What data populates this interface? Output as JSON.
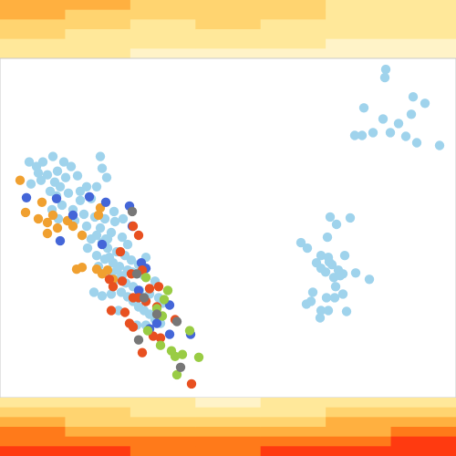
{
  "chart_data": {
    "type": "scatter",
    "title": "",
    "xlabel": "",
    "ylabel": "",
    "grid": false,
    "legend": "none",
    "xlim": [
      0,
      500
    ],
    "ylim": [
      65,
      435
    ],
    "colors": {
      "light_blue": "#9fd3ec",
      "orange": "#f0a030",
      "blue": "#4466d8",
      "red": "#e85020",
      "green": "#99cc44",
      "gray": "#777777"
    },
    "heatmap_palette": [
      "#fff3c8",
      "#ffe89a",
      "#ffd470",
      "#ffb040",
      "#ff7a1a",
      "#ff3a10"
    ],
    "top_heatmap": [
      [
        0.55,
        0.5,
        0.35,
        0.3,
        0.15,
        0.1
      ],
      [
        0.5,
        0.4,
        0.3,
        0.25,
        0.15,
        0.1
      ],
      [
        0.35,
        0.35,
        0.25,
        0.2,
        0.1,
        0.05
      ],
      [
        0.3,
        0.3,
        0.3,
        0.15,
        0.1,
        0.05
      ],
      [
        0.35,
        0.3,
        0.25,
        0.15,
        0.1,
        0.05
      ],
      [
        0.2,
        0.2,
        0.15,
        0.1,
        0.05,
        0.05
      ],
      [
        0.15,
        0.15,
        0.1,
        0.1,
        0.05,
        0.0
      ]
    ],
    "bottom_heatmap": [
      [
        0.2,
        0.35,
        0.55,
        0.7,
        0.85,
        0.95
      ],
      [
        0.15,
        0.3,
        0.45,
        0.6,
        0.8,
        0.9
      ],
      [
        0.1,
        0.2,
        0.4,
        0.55,
        0.75,
        0.85
      ],
      [
        0.05,
        0.2,
        0.35,
        0.5,
        0.7,
        0.85
      ],
      [
        0.1,
        0.25,
        0.4,
        0.6,
        0.8,
        0.95
      ],
      [
        0.15,
        0.3,
        0.5,
        0.65,
        0.85,
        1.0
      ],
      [
        0.2,
        0.35,
        0.55,
        0.7,
        0.9,
        1.0
      ]
    ],
    "series": [
      {
        "color_key": "light_blue",
        "points": [
          [
            32,
            178
          ],
          [
            40,
            183
          ],
          [
            47,
            178
          ],
          [
            58,
            172
          ],
          [
            70,
            178
          ],
          [
            78,
            183
          ],
          [
            63,
            188
          ],
          [
            52,
            192
          ],
          [
            45,
            198
          ],
          [
            60,
            200
          ],
          [
            72,
            195
          ],
          [
            85,
            193
          ],
          [
            95,
            205
          ],
          [
            106,
            205
          ],
          [
            112,
            185
          ],
          [
            110,
            172
          ],
          [
            117,
            195
          ],
          [
            34,
            202
          ],
          [
            55,
            210
          ],
          [
            62,
            215
          ],
          [
            75,
            212
          ],
          [
            88,
            220
          ],
          [
            100,
            218
          ],
          [
            68,
            225
          ],
          [
            80,
            230
          ],
          [
            92,
            235
          ],
          [
            104,
            238
          ],
          [
            115,
            240
          ],
          [
            126,
            243
          ],
          [
            57,
            230
          ],
          [
            64,
            240
          ],
          [
            82,
            242
          ],
          [
            95,
            248
          ],
          [
            110,
            250
          ],
          [
            122,
            255
          ],
          [
            134,
            260
          ],
          [
            100,
            262
          ],
          [
            112,
            266
          ],
          [
            118,
            272
          ],
          [
            128,
            276
          ],
          [
            137,
            280
          ],
          [
            144,
            285
          ],
          [
            96,
            272
          ],
          [
            106,
            280
          ],
          [
            115,
            284
          ],
          [
            124,
            288
          ],
          [
            131,
            292
          ],
          [
            140,
            296
          ],
          [
            150,
            300
          ],
          [
            158,
            302
          ],
          [
            160,
            282
          ],
          [
            152,
            290
          ],
          [
            122,
            300
          ],
          [
            130,
            306
          ],
          [
            138,
            310
          ],
          [
            146,
            314
          ],
          [
            153,
            318
          ],
          [
            164,
            322
          ],
          [
            170,
            308
          ],
          [
            174,
            326
          ],
          [
            178,
            332
          ],
          [
            103,
            320
          ],
          [
            112,
            324
          ],
          [
            122,
            322
          ],
          [
            133,
            320
          ],
          [
            140,
            325
          ],
          [
            146,
            330
          ],
          [
            152,
            336
          ],
          [
            158,
            340
          ],
          [
            164,
            344
          ],
          [
            170,
            350
          ],
          [
            176,
            354
          ],
          [
            160,
            356
          ],
          [
            150,
            356
          ],
          [
            130,
            340
          ],
          [
            125,
            232
          ],
          [
            135,
            240
          ],
          [
            118,
            262
          ],
          [
            108,
            292
          ],
          [
            128,
            296
          ],
          [
            106,
            258
          ],
          [
            90,
            258
          ],
          [
            42,
            190
          ],
          [
            66,
            205
          ],
          [
            88,
            210
          ],
          [
            116,
            262
          ],
          [
            120,
            282
          ],
          [
            134,
            302
          ],
          [
            145,
            298
          ],
          [
            140,
            268
          ],
          [
            423,
            77
          ],
          [
            422,
            86
          ],
          [
            453,
            107
          ],
          [
            466,
            114
          ],
          [
            399,
            119
          ],
          [
            420,
            131
          ],
          [
            451,
            126
          ],
          [
            437,
            136
          ],
          [
            428,
            146
          ],
          [
            445,
            150
          ],
          [
            409,
            146
          ],
          [
            397,
            149
          ],
          [
            389,
            149
          ],
          [
            457,
            157
          ],
          [
            482,
            160
          ],
          [
            362,
            238
          ],
          [
            384,
            239
          ],
          [
            369,
            246
          ],
          [
            330,
            266
          ],
          [
            337,
            272
          ],
          [
            359,
            260
          ],
          [
            352,
            280
          ],
          [
            360,
            282
          ],
          [
            378,
            280
          ],
          [
            364,
            290
          ],
          [
            371,
            296
          ],
          [
            357,
            298
          ],
          [
            366,
            304
          ],
          [
            376,
            300
          ],
          [
            390,
            299
          ],
          [
            405,
            306
          ],
          [
            347,
            288
          ],
          [
            352,
            294
          ],
          [
            368,
            314
          ],
          [
            376,
            322
          ],
          [
            367,
            326
          ],
          [
            358,
            326
          ],
          [
            343,
            320
          ],
          [
            341,
            330
          ],
          [
            336,
            333
          ],
          [
            352,
            340
          ],
          [
            360,
            340
          ],
          [
            380,
            341
          ],
          [
            351,
            348
          ],
          [
            373,
            302
          ],
          [
            361,
            287
          ]
        ]
      },
      {
        "color_key": "orange",
        "points": [
          [
            22,
            198
          ],
          [
            46,
            222
          ],
          [
            28,
            233
          ],
          [
            42,
            240
          ],
          [
            52,
            244
          ],
          [
            58,
            236
          ],
          [
            52,
            256
          ],
          [
            63,
            250
          ],
          [
            74,
            242
          ],
          [
            80,
            248
          ],
          [
            110,
            228
          ],
          [
            108,
            236
          ],
          [
            90,
            258
          ],
          [
            84,
            295
          ],
          [
            90,
            293
          ],
          [
            106,
            295
          ],
          [
            112,
            300
          ],
          [
            118,
            296
          ],
          [
            124,
            306
          ]
        ]
      },
      {
        "color_key": "blue",
        "points": [
          [
            29,
            217
          ],
          [
            62,
            218
          ],
          [
            66,
            264
          ],
          [
            80,
            236
          ],
          [
            98,
            216
          ],
          [
            116,
            222
          ],
          [
            142,
            226
          ],
          [
            155,
            288
          ],
          [
            160,
            294
          ],
          [
            186,
            334
          ],
          [
            186,
            366
          ],
          [
            209,
            366
          ],
          [
            172,
            354
          ],
          [
            164,
            360
          ],
          [
            112,
            268
          ],
          [
            145,
            248
          ],
          [
            152,
            318
          ]
        ]
      },
      {
        "color_key": "red",
        "points": [
          [
            152,
            258
          ],
          [
            146,
            248
          ],
          [
            132,
            276
          ],
          [
            120,
            306
          ],
          [
            124,
            314
          ],
          [
            134,
            308
          ],
          [
            144,
            300
          ],
          [
            156,
            296
          ],
          [
            164,
            316
          ],
          [
            174,
            314
          ],
          [
            192,
            350
          ],
          [
            122,
            340
          ],
          [
            137,
            342
          ],
          [
            142,
            354
          ],
          [
            146,
            358
          ],
          [
            168,
            368
          ],
          [
            176,
            370
          ],
          [
            156,
            386
          ],
          [
            210,
            420
          ],
          [
            152,
            326
          ],
          [
            160,
            330
          ],
          [
            172,
            336
          ],
          [
            146,
            326
          ]
        ]
      },
      {
        "color_key": "green",
        "points": [
          [
            160,
            304
          ],
          [
            184,
            318
          ],
          [
            172,
            338
          ],
          [
            162,
            362
          ],
          [
            176,
            378
          ],
          [
            188,
            384
          ],
          [
            192,
            390
          ],
          [
            200,
            388
          ],
          [
            218,
            391
          ],
          [
            194,
            410
          ],
          [
            208,
            362
          ],
          [
            178,
            346
          ],
          [
            180,
            328
          ]
        ]
      },
      {
        "color_key": "gray",
        "points": [
          [
            145,
            232
          ],
          [
            150,
            300
          ],
          [
            158,
            326
          ],
          [
            172,
            344
          ],
          [
            194,
            352
          ],
          [
            152,
            372
          ],
          [
            198,
            402
          ]
        ]
      }
    ]
  }
}
